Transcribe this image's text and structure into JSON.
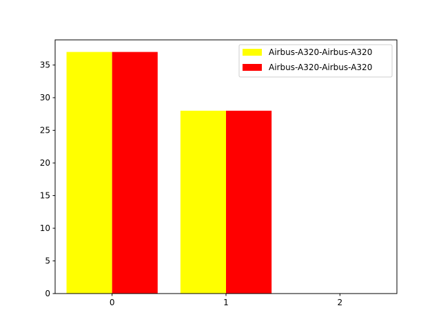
{
  "chart_data": {
    "type": "bar",
    "title": "",
    "xlabel": "",
    "ylabel": "",
    "categories": [
      "0",
      "1",
      "2"
    ],
    "series": [
      {
        "name": "Airbus-A320-Airbus-A320",
        "values": [
          37,
          28,
          0
        ],
        "color": "#ffff00"
      },
      {
        "name": "Airbus-A320-Airbus-A320",
        "values": [
          37,
          28,
          0
        ],
        "color": "#ff0000"
      }
    ],
    "xlim": [
      -0.5,
      2.5
    ],
    "ylim": [
      0,
      38.85
    ],
    "yticks": [
      0,
      5,
      10,
      15,
      20,
      25,
      30,
      35
    ],
    "grid": false,
    "legend": "top-right"
  }
}
